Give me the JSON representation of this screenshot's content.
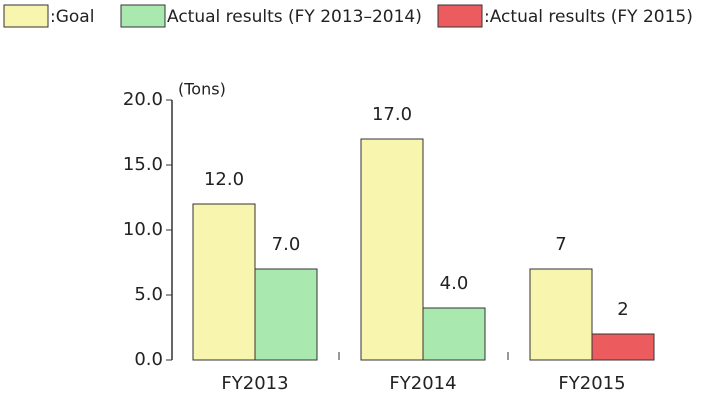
{
  "chart_data": {
    "type": "bar",
    "axis_label": "(Tons)",
    "categories": [
      "FY2013",
      "FY2014",
      "FY2015"
    ],
    "series": [
      {
        "name": ":Goal",
        "color": "#f8f5ae",
        "values": [
          12,
          17,
          7
        ],
        "value_labels": [
          "12.0",
          "17.0",
          "7"
        ]
      },
      {
        "name": "Actual results (FY 2013–2014)",
        "color": "#a9e9b0",
        "values": [
          7,
          4,
          null
        ],
        "value_labels": [
          "7.0",
          "4.0",
          null
        ]
      },
      {
        "name": ":Actual results (FY 2015)",
        "color": "#ec5c5f",
        "values": [
          null,
          null,
          2
        ],
        "value_labels": [
          null,
          null,
          "2"
        ]
      }
    ],
    "ylim": [
      0,
      20
    ],
    "yticks": [
      {
        "value": 0,
        "label": "0.0"
      },
      {
        "value": 5,
        "label": "5.0"
      },
      {
        "value": 10,
        "label": "10.0"
      },
      {
        "value": 15,
        "label": "15.0"
      },
      {
        "value": 20,
        "label": "20.0"
      }
    ]
  }
}
